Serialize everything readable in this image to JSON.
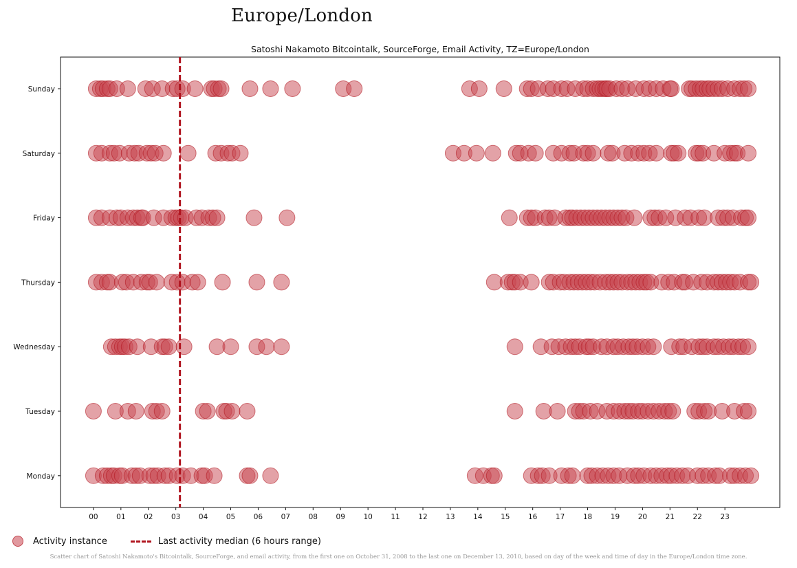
{
  "page_title": "Europe/London",
  "caption": "Scatter chart of Satoshi Nakamoto's Bitcointalk, SourceForge, and email activity, from the first one on October 31, 2008 to the last one on December 13, 2010, based on day of the week and time of day in the Europe/London time zone.",
  "legend": {
    "activity_label": "Activity instance",
    "median_label": "Last activity median (6 hours range)"
  },
  "colors": {
    "point_fill": "#c8464f",
    "point_edge": "#b0141e",
    "median_line": "#b0141e"
  },
  "chart_data": {
    "type": "scatter",
    "title": "Satoshi Nakamoto Bitcointalk, SourceForge, Email Activity, TZ=Europe/London",
    "xlabel": "",
    "ylabel": "",
    "xlim": [
      -1.2,
      25
    ],
    "x_ticks": [
      "00",
      "01",
      "02",
      "03",
      "04",
      "05",
      "06",
      "07",
      "08",
      "09",
      "10",
      "11",
      "12",
      "13",
      "14",
      "15",
      "16",
      "17",
      "18",
      "19",
      "20",
      "21",
      "22",
      "23"
    ],
    "categories": [
      "Sunday",
      "Saturday",
      "Friday",
      "Thursday",
      "Wednesday",
      "Tuesday",
      "Monday"
    ],
    "median_hour": 3.15,
    "grid": false,
    "legend_position": "bottom-left",
    "series": [
      {
        "category": "Sunday",
        "x": [
          0.1,
          0.25,
          0.35,
          0.5,
          0.6,
          0.85,
          1.25,
          1.9,
          2.15,
          2.5,
          2.9,
          3.05,
          3.25,
          3.7,
          4.3,
          4.4,
          4.55,
          4.65,
          5.7,
          6.45,
          7.25,
          9.1,
          9.5,
          13.7,
          14.05,
          14.95,
          15.8,
          15.95,
          16.2,
          16.55,
          16.75,
          17.05,
          17.25,
          17.55,
          17.85,
          18.0,
          18.2,
          18.35,
          18.45,
          18.55,
          18.65,
          18.7,
          18.8,
          19.05,
          19.25,
          19.45,
          19.75,
          20.05,
          20.25,
          20.5,
          20.75,
          21.0,
          21.05,
          21.7,
          21.8,
          21.95,
          22.1,
          22.2,
          22.35,
          22.45,
          22.6,
          22.75,
          22.9,
          23.1,
          23.35,
          23.55,
          23.7,
          23.85
        ]
      },
      {
        "category": "Saturday",
        "x": [
          0.1,
          0.3,
          0.6,
          0.75,
          0.95,
          1.3,
          1.5,
          1.65,
          1.95,
          2.1,
          2.25,
          2.55,
          3.45,
          4.45,
          4.65,
          4.9,
          5.05,
          5.35,
          13.1,
          13.5,
          13.95,
          14.55,
          15.4,
          15.55,
          15.85,
          16.1,
          16.75,
          17.05,
          17.35,
          17.5,
          17.85,
          18.0,
          18.2,
          18.75,
          18.9,
          19.35,
          19.6,
          19.85,
          20.05,
          20.25,
          20.5,
          21.05,
          21.15,
          21.3,
          21.95,
          22.05,
          22.2,
          22.6,
          23.0,
          23.2,
          23.35,
          23.45,
          23.85
        ]
      },
      {
        "category": "Friday",
        "x": [
          0.1,
          0.3,
          0.6,
          0.85,
          1.0,
          1.25,
          1.45,
          1.6,
          1.75,
          1.8,
          2.2,
          2.55,
          2.85,
          3.0,
          3.1,
          3.2,
          3.35,
          3.75,
          3.95,
          4.2,
          4.35,
          4.5,
          5.85,
          7.05,
          15.15,
          15.8,
          15.95,
          16.1,
          16.45,
          16.6,
          16.8,
          17.2,
          17.35,
          17.45,
          17.6,
          17.75,
          17.9,
          18.05,
          18.2,
          18.35,
          18.5,
          18.65,
          18.8,
          18.95,
          19.1,
          19.25,
          19.4,
          19.7,
          20.3,
          20.45,
          20.6,
          20.85,
          21.2,
          21.55,
          21.75,
          22.05,
          22.25,
          22.75,
          22.95,
          23.1,
          23.3,
          23.6,
          23.75,
          23.85
        ]
      },
      {
        "category": "Thursday",
        "x": [
          0.1,
          0.3,
          0.5,
          0.6,
          1.05,
          1.2,
          1.45,
          1.75,
          1.95,
          2.05,
          2.3,
          2.85,
          3.05,
          3.25,
          3.6,
          3.8,
          4.7,
          5.95,
          6.85,
          14.6,
          15.1,
          15.25,
          15.35,
          15.55,
          15.95,
          16.6,
          16.75,
          17.0,
          17.15,
          17.35,
          17.5,
          17.65,
          17.8,
          17.95,
          18.1,
          18.25,
          18.45,
          18.65,
          18.8,
          18.95,
          19.1,
          19.25,
          19.45,
          19.6,
          19.75,
          19.9,
          20.05,
          20.15,
          20.3,
          20.7,
          20.95,
          21.15,
          21.45,
          21.55,
          21.85,
          22.15,
          22.35,
          22.6,
          22.75,
          22.9,
          23.05,
          23.2,
          23.35,
          23.55,
          23.85,
          23.95
        ]
      },
      {
        "category": "Wednesday",
        "x": [
          0.65,
          0.8,
          0.95,
          1.05,
          1.15,
          1.3,
          1.6,
          2.1,
          2.5,
          2.6,
          2.75,
          3.3,
          4.5,
          5.0,
          5.95,
          6.3,
          6.85,
          15.35,
          16.3,
          16.7,
          16.95,
          17.2,
          17.4,
          17.55,
          17.7,
          17.95,
          18.05,
          18.2,
          18.5,
          18.7,
          18.95,
          19.1,
          19.3,
          19.5,
          19.65,
          19.8,
          20.0,
          20.2,
          20.4,
          21.05,
          21.35,
          21.5,
          21.8,
          22.05,
          22.2,
          22.35,
          22.6,
          22.75,
          22.95,
          23.15,
          23.3,
          23.5,
          23.65,
          23.85
        ]
      },
      {
        "category": "Tuesday",
        "x": [
          0.0,
          0.8,
          1.25,
          1.55,
          2.15,
          2.3,
          2.5,
          4.0,
          4.15,
          4.75,
          4.85,
          5.05,
          5.6,
          15.35,
          16.4,
          16.9,
          17.55,
          17.7,
          17.85,
          18.1,
          18.35,
          18.7,
          18.95,
          19.15,
          19.35,
          19.5,
          19.65,
          19.85,
          20.0,
          20.2,
          20.4,
          20.6,
          20.8,
          20.95,
          21.1,
          21.9,
          22.05,
          22.25,
          22.4,
          22.9,
          23.35,
          23.7,
          23.85
        ]
      },
      {
        "category": "Monday",
        "x": [
          0.0,
          0.35,
          0.5,
          0.65,
          0.75,
          0.95,
          1.05,
          1.4,
          1.55,
          1.7,
          2.05,
          2.2,
          2.35,
          2.6,
          2.75,
          3.05,
          3.25,
          3.55,
          3.95,
          4.05,
          4.4,
          5.6,
          5.7,
          6.45,
          13.9,
          14.2,
          14.5,
          14.6,
          15.95,
          16.2,
          16.35,
          16.6,
          17.05,
          17.3,
          17.45,
          18.0,
          18.15,
          18.35,
          18.55,
          18.75,
          18.95,
          19.15,
          19.45,
          19.7,
          19.85,
          20.05,
          20.3,
          20.5,
          20.7,
          20.9,
          21.05,
          21.25,
          21.45,
          21.65,
          22.0,
          22.2,
          22.4,
          22.65,
          22.8,
          23.2,
          23.35,
          23.55,
          23.75,
          23.95
        ]
      }
    ]
  }
}
